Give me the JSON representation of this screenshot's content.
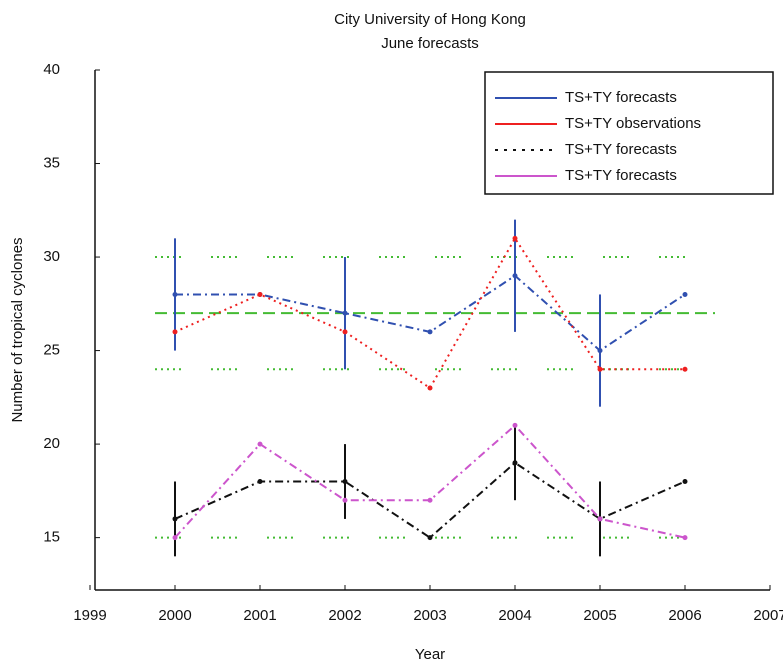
{
  "chart_data": {
    "type": "line",
    "title": "City University of Hong Kong",
    "subtitle": "June forecasts",
    "x_label": "Year",
    "y_label": "Number of tropical cyclones",
    "x": [
      2000,
      2001,
      2002,
      2003,
      2004,
      2005,
      2006
    ],
    "xlim": [
      1999,
      2007
    ],
    "xticks": [
      1999,
      2000,
      2001,
      2002,
      2003,
      2004,
      2005,
      2006,
      2007
    ],
    "ylim": [
      12.2,
      40
    ],
    "yticks": [
      15,
      20,
      25,
      30,
      35,
      40
    ],
    "series": [
      {
        "name": "TS+TY forecasts",
        "color": "#3050b0",
        "style": "dashdot",
        "values": [
          28,
          28,
          27,
          26,
          29,
          25,
          28
        ],
        "errors": [
          3,
          null,
          3,
          null,
          3,
          3,
          null
        ]
      },
      {
        "name": "TS+TY observations",
        "color": "#ee2020",
        "style": "dotted",
        "values": [
          26,
          28,
          26,
          23,
          31,
          24,
          24
        ]
      },
      {
        "name": "TS+TY forecasts",
        "color": "#111111",
        "style": "dashdot",
        "values": [
          16,
          18,
          18,
          15,
          19,
          16,
          18
        ],
        "errors": [
          2,
          null,
          2,
          null,
          2,
          2,
          null
        ]
      },
      {
        "name": "TS+TY forecasts",
        "color": "#cc55cc",
        "style": "dashdot",
        "values": [
          15,
          20,
          17,
          17,
          21,
          16,
          15
        ]
      }
    ],
    "reference_lines": [
      {
        "value": 27,
        "color": "#44bb33",
        "style": "dashed"
      },
      {
        "value": 30,
        "color": "#44bb33",
        "style": "dotted"
      },
      {
        "value": 24,
        "color": "#44bb33",
        "style": "dotted"
      },
      {
        "value": 15,
        "color": "#44bb33",
        "style": "dotted"
      }
    ],
    "legend": "upper right"
  }
}
